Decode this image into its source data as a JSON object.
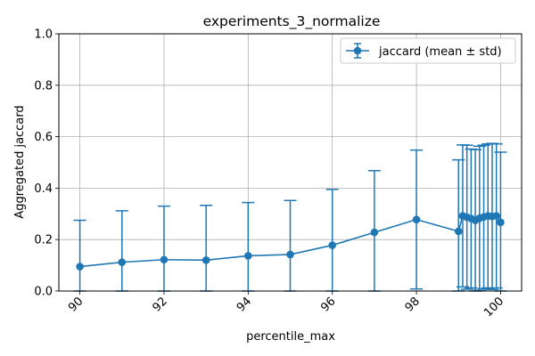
{
  "chart_data": {
    "type": "line",
    "title": "experiments_3_normalize",
    "xlabel": "percentile_max",
    "ylabel": "Aggregated jaccard",
    "xlim": [
      89.5,
      100.5
    ],
    "ylim": [
      0,
      1
    ],
    "x_ticks": [
      90,
      92,
      94,
      96,
      98,
      100
    ],
    "x_tick_labels": [
      "90",
      "92",
      "94",
      "96",
      "98",
      "100"
    ],
    "y_ticks": [
      0,
      0.2,
      0.4,
      0.6,
      0.8,
      1.0
    ],
    "y_tick_labels": [
      "0.0",
      "0.2",
      "0.4",
      "0.6",
      "0.8",
      "1.0"
    ],
    "grid": true,
    "legend_position": "top-right",
    "color": "#1f77b4",
    "series": [
      {
        "name": "jaccard (mean ± std)",
        "x": [
          90,
          91,
          92,
          93,
          94,
          95,
          96,
          97,
          98,
          99,
          99.1,
          99.2,
          99.3,
          99.4,
          99.5,
          99.6,
          99.7,
          99.8,
          99.9,
          100
        ],
        "y": [
          0.095,
          0.112,
          0.122,
          0.12,
          0.137,
          0.142,
          0.178,
          0.228,
          0.278,
          0.232,
          0.292,
          0.287,
          0.282,
          0.275,
          0.283,
          0.288,
          0.292,
          0.29,
          0.292,
          0.267
        ],
        "err": [
          0.18,
          0.2,
          0.208,
          0.213,
          0.207,
          0.21,
          0.217,
          0.24,
          0.27,
          0.278,
          0.276,
          0.28,
          0.27,
          0.275,
          0.28,
          0.279,
          0.28,
          0.284,
          0.28,
          0.273
        ]
      }
    ]
  }
}
